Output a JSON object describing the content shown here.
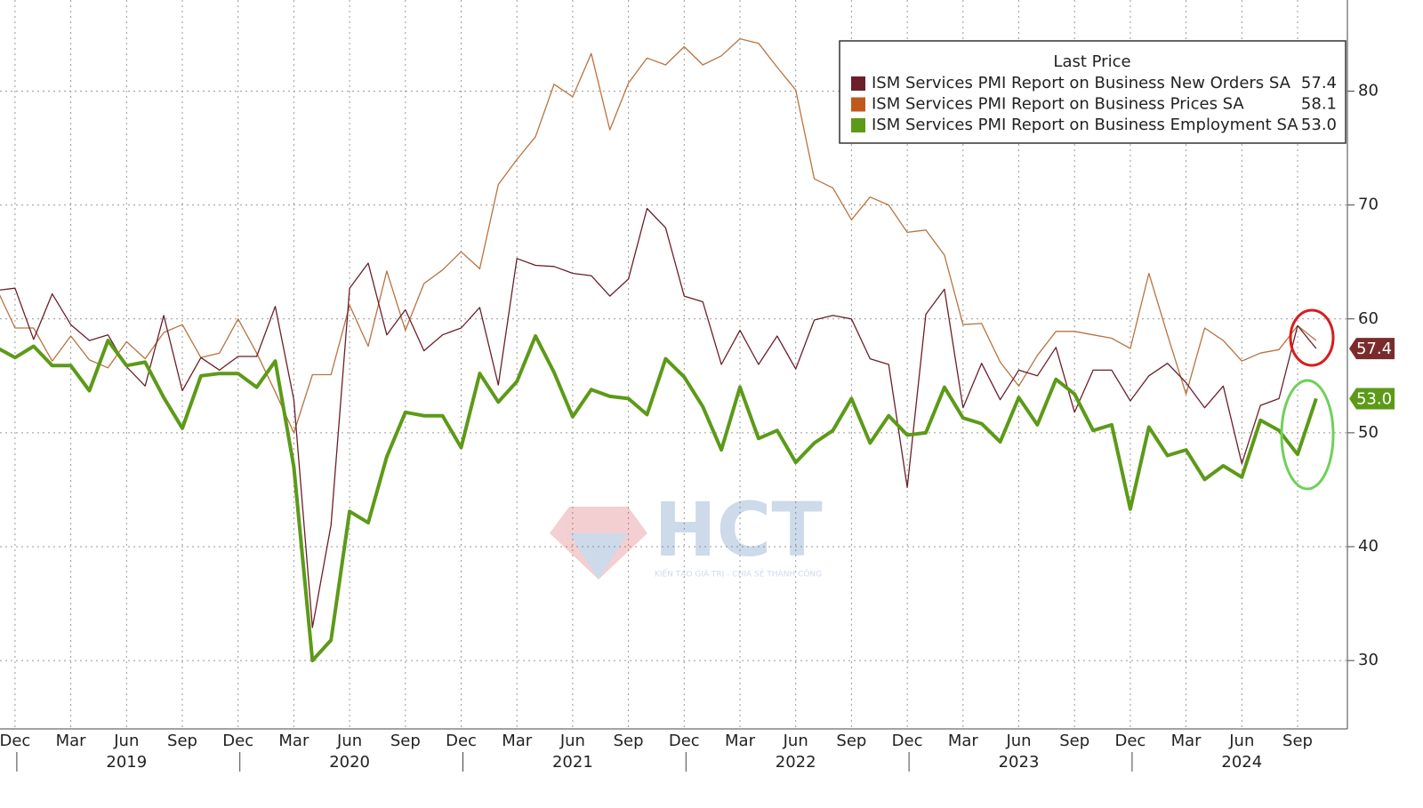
{
  "chart_data": {
    "type": "line",
    "legend_title": "Last Price",
    "watermark": "HCT",
    "watermark_tagline": "KIẾN TẠO GIÁ TRỊ - CHIA SẺ THÀNH CÔNG",
    "categories": [
      null,
      "Dec",
      null,
      null,
      "Mar",
      null,
      null,
      "Jun",
      null,
      null,
      "Sep",
      null,
      null,
      "Dec",
      null,
      null,
      "Mar",
      null,
      null,
      "Jun",
      null,
      null,
      "Sep",
      null,
      null,
      "Dec",
      null,
      null,
      "Mar",
      null,
      null,
      "Jun",
      null,
      null,
      "Sep",
      null,
      null,
      "Dec",
      null,
      null,
      "Mar",
      null,
      null,
      "Jun",
      null,
      null,
      "Sep",
      null,
      null,
      "Dec",
      null,
      null,
      "Mar",
      null,
      null,
      "Jun",
      null,
      null,
      "Sep",
      null,
      null,
      "Dec",
      null,
      null,
      "Mar",
      null,
      null,
      "Jun",
      null,
      null,
      "Sep",
      null
    ],
    "years": [
      "2019",
      "2020",
      "2021",
      "2022",
      "2023",
      "2024"
    ],
    "series": [
      {
        "name": "ISM Services PMI Report on Business New Orders SA",
        "color": "#6b1f2a",
        "last_price": "57.4",
        "values": [
          62.5,
          62.7,
          58.2,
          62.2,
          59.5,
          58.1,
          58.6,
          55.8,
          54.1,
          60.3,
          53.7,
          56.6,
          55.5,
          56.7,
          56.7,
          61.1,
          52.9,
          32.9,
          41.9,
          62.7,
          64.9,
          58.6,
          60.8,
          57.2,
          58.6,
          59.2,
          61.0,
          54.2,
          65.3,
          64.7,
          64.6,
          64.0,
          63.8,
          62.0,
          63.5,
          69.7,
          68.0,
          62.0,
          61.5,
          56.0,
          59.0,
          56.0,
          58.5,
          55.6,
          59.9,
          60.3,
          60.0,
          56.5,
          56.0,
          45.2,
          60.4,
          62.6,
          52.2,
          56.1,
          52.9,
          55.5,
          55.0,
          57.5,
          51.8,
          55.5,
          55.5,
          52.8,
          55.0,
          56.1,
          54.4,
          52.2,
          54.1,
          47.3,
          52.4,
          53.0,
          59.4,
          57.4
        ]
      },
      {
        "name": "ISM Services PMI Report on Business Prices SA",
        "color": "#c0581d",
        "last_price": "58.1",
        "values": [
          62.7,
          59.2,
          59.2,
          56.3,
          58.5,
          56.4,
          55.7,
          58.0,
          56.5,
          58.8,
          59.5,
          56.6,
          57.0,
          60.0,
          57.0,
          53.6,
          50.0,
          55.1,
          55.1,
          61.2,
          57.6,
          64.2,
          59.0,
          63.1,
          64.3,
          65.9,
          64.4,
          71.8,
          74.0,
          76.0,
          80.6,
          79.5,
          83.3,
          76.6,
          80.7,
          82.9,
          82.3,
          83.9,
          82.3,
          83.1,
          84.6,
          84.2,
          82.1,
          80.1,
          72.3,
          71.5,
          68.7,
          70.7,
          70.0,
          67.6,
          67.8,
          65.6,
          59.5,
          59.6,
          56.2,
          54.1,
          56.8,
          58.9,
          58.9,
          58.6,
          58.3,
          57.4,
          64.0,
          58.6,
          53.4,
          59.2,
          58.1,
          56.3,
          57.0,
          57.3,
          59.4,
          58.1
        ]
      },
      {
        "name": "ISM Services PMI Report on Business Employment SA",
        "color": "#5c9a18",
        "last_price": "53.0",
        "values": [
          57.5,
          56.6,
          57.6,
          55.9,
          55.9,
          53.7,
          58.1,
          55.9,
          56.2,
          53.1,
          50.4,
          55.0,
          55.2,
          55.2,
          54.0,
          56.3,
          47.0,
          30.0,
          31.8,
          43.1,
          42.1,
          47.9,
          51.8,
          51.5,
          51.5,
          48.7,
          55.2,
          52.7,
          54.5,
          58.5,
          55.3,
          51.4,
          53.8,
          53.2,
          53.0,
          51.6,
          56.5,
          54.9,
          52.3,
          48.5,
          54.0,
          49.5,
          50.2,
          47.4,
          49.1,
          50.2,
          53.0,
          49.1,
          51.5,
          49.8,
          50.0,
          54.0,
          51.3,
          50.8,
          49.2,
          53.1,
          50.7,
          54.7,
          53.4,
          50.2,
          50.7,
          43.3,
          50.5,
          48.0,
          48.5,
          45.9,
          47.1,
          46.1,
          51.1,
          50.2,
          48.1,
          53.0
        ]
      }
    ],
    "ylim": [
      24,
      88
    ],
    "yticks": [
      30,
      40,
      50,
      60,
      70,
      80
    ],
    "grid": true
  }
}
